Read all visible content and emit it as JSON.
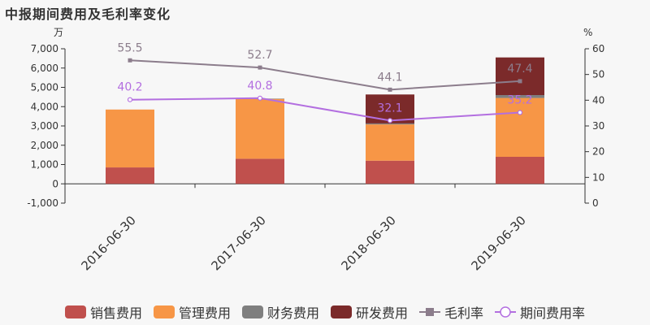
{
  "title": "中报期间费用及毛利率变化",
  "chart_data": {
    "type": "bar",
    "categories": [
      "2016-06-30",
      "2017-06-30",
      "2018-06-30",
      "2019-06-30"
    ],
    "left_axis": {
      "unit": "万",
      "min": -1000,
      "max": 7000,
      "ticks": [
        "-1,000",
        "0",
        "1,000",
        "2,000",
        "3,000",
        "4,000",
        "5,000",
        "6,000",
        "7,000"
      ]
    },
    "right_axis": {
      "unit": "%",
      "min": 0,
      "max": 60,
      "ticks": [
        "0",
        "10",
        "20",
        "30",
        "40",
        "50",
        "60"
      ]
    },
    "bar_series": [
      {
        "name": "销售费用",
        "color": "#c0504d",
        "values": [
          850,
          1300,
          1200,
          1400
        ]
      },
      {
        "name": "管理费用",
        "color": "#f79646",
        "values": [
          3000,
          3100,
          1880,
          3050
        ]
      },
      {
        "name": "财务费用",
        "color": "#7f7f7f",
        "values": [
          0,
          20,
          50,
          150
        ]
      },
      {
        "name": "研发费用",
        "color": "#7b2a2a",
        "values": [
          0,
          0,
          1500,
          1950
        ]
      }
    ],
    "line_series": [
      {
        "name": "毛利率",
        "color": "#8c7d8c",
        "marker": "square",
        "values": [
          55.5,
          52.7,
          44.1,
          47.4
        ],
        "labels": [
          "55.5",
          "52.7",
          "44.1",
          "47.4"
        ]
      },
      {
        "name": "期间费用率",
        "color": "#b36fe0",
        "marker": "circle",
        "values": [
          40.2,
          40.8,
          32.1,
          35.2
        ],
        "labels": [
          "40.2",
          "40.8",
          "32.1",
          "35.2"
        ]
      }
    ]
  }
}
